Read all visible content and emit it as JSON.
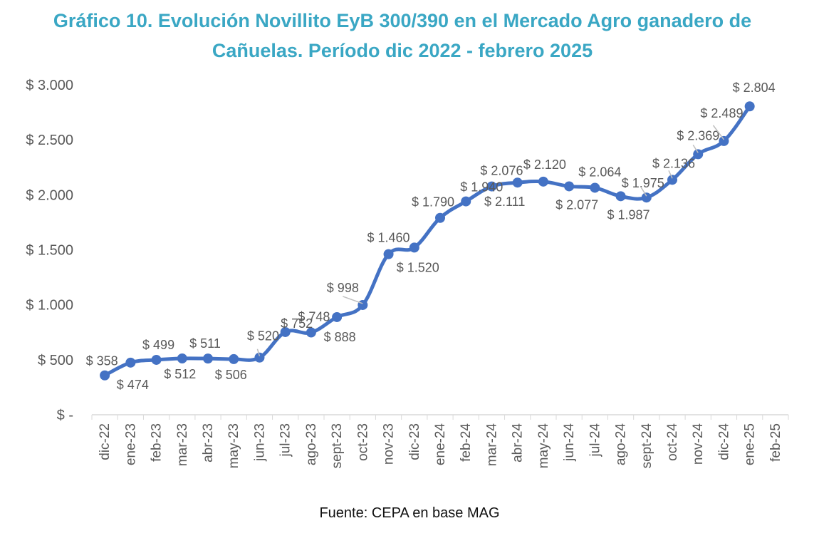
{
  "chart_data": {
    "type": "line",
    "title": "Gráfico 10. Evolución Novillito EyB 300/390 en el Mercado Agro ganadero de Cañuelas. Período dic 2022 - febrero 2025",
    "title_lines": [
      "Gráfico 10. Evolución Novillito EyB 300/390 en el Mercado Agro ganadero de",
      "Cañuelas. Período dic 2022 - febrero 2025"
    ],
    "xlabel": "",
    "ylabel": "",
    "categories": [
      "dic-22",
      "ene-23",
      "feb-23",
      "mar-23",
      "abr-23",
      "may-23",
      "jun-23",
      "jul-23",
      "ago-23",
      "sept-23",
      "oct-23",
      "nov-23",
      "dic-23",
      "ene-24",
      "feb-24",
      "mar-24",
      "abr-24",
      "may-24",
      "jun-24",
      "jul-24",
      "ago-24",
      "sept-24",
      "oct-24",
      "nov-24",
      "dic-24",
      "ene-25",
      "feb-25"
    ],
    "series": [
      {
        "name": "Novillito EyB 300/390",
        "color": "#4472c4",
        "values": [
          358,
          474,
          499,
          512,
          511,
          506,
          520,
          752,
          748,
          888,
          998,
          1460,
          1520,
          1790,
          1940,
          2076,
          2111,
          2120,
          2077,
          2064,
          1987,
          1975,
          2136,
          2369,
          2489,
          2804,
          null
        ],
        "labels": [
          "$ 358",
          "$ 474",
          "$ 499",
          "$ 512",
          "$ 511",
          "$ 506",
          "$ 520",
          "$ 752",
          "$ 748",
          "$ 888",
          "$ 998",
          "$ 1.460",
          "$ 1.520",
          "$ 1.790",
          "$ 1.940",
          "$ 2.076",
          "$ 2.111",
          "$ 2.120",
          "$ 2.077",
          "$ 2.064",
          "$ 1.987",
          "$ 1.975",
          "$ 2.136",
          "$ 2.369",
          "$ 2.489",
          "$ 2.804"
        ]
      }
    ],
    "ylim": [
      0,
      3000
    ],
    "yticks": [
      0,
      500,
      1000,
      1500,
      2000,
      2500,
      3000
    ],
    "ytick_labels": [
      "$ -",
      "$ 500",
      "$ 1.000",
      "$ 1.500",
      "$ 2.000",
      "$ 2.500",
      "$ 3.000"
    ],
    "grid": false,
    "legend": "none",
    "smooth": true,
    "source": "Fuente: CEPA en base MAG"
  }
}
